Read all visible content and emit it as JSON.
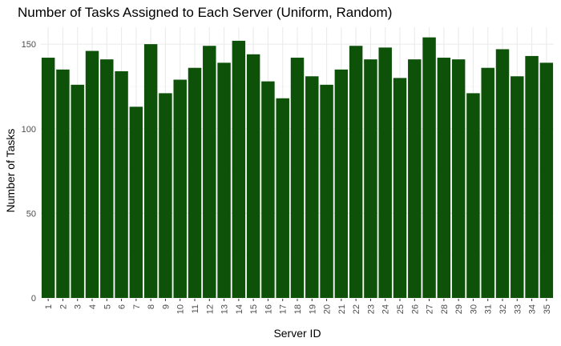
{
  "chart_data": {
    "type": "bar",
    "title": "Number of Tasks Assigned to Each Server (Uniform, Random)",
    "xlabel": "Server ID",
    "ylabel": "Number of Tasks",
    "categories": [
      "1",
      "2",
      "3",
      "4",
      "5",
      "6",
      "7",
      "8",
      "9",
      "10",
      "11",
      "12",
      "13",
      "14",
      "15",
      "16",
      "17",
      "18",
      "19",
      "20",
      "21",
      "22",
      "23",
      "24",
      "25",
      "26",
      "27",
      "28",
      "29",
      "30",
      "31",
      "32",
      "33",
      "34",
      "35"
    ],
    "values": [
      142,
      135,
      126,
      146,
      141,
      134,
      113,
      150,
      121,
      129,
      136,
      149,
      139,
      152,
      144,
      128,
      118,
      142,
      131,
      126,
      135,
      149,
      141,
      148,
      130,
      141,
      154,
      142,
      141,
      121,
      136,
      147,
      131,
      143,
      139
    ],
    "ylim": [
      0,
      160
    ],
    "yticks": [
      0,
      50,
      100,
      150
    ],
    "grid": true,
    "bar_color": "#0d5208"
  }
}
